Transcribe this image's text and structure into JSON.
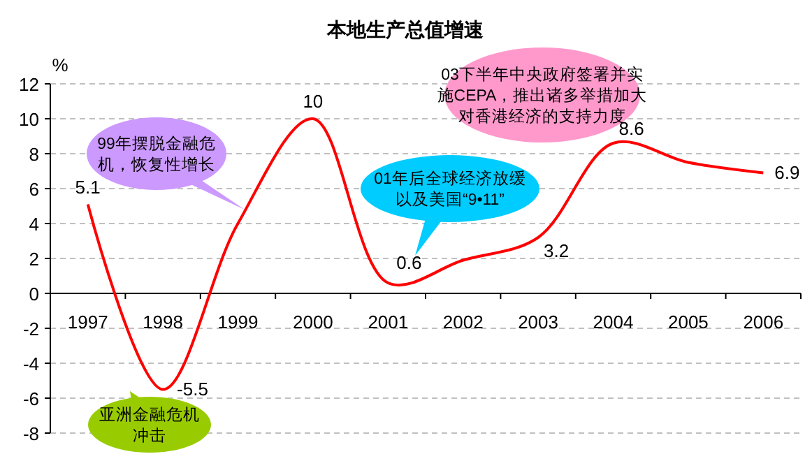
{
  "chart_data": {
    "type": "line",
    "title": "本地生产总值增速",
    "ylabel": "%",
    "categories": [
      "1997",
      "1998",
      "1999",
      "2000",
      "2001",
      "2002",
      "2003",
      "2004",
      "2005",
      "2006"
    ],
    "series": [
      {
        "color": "#ff0000",
        "values": [
          5.1,
          -5.5,
          4.0,
          10,
          0.6,
          1.9,
          3.2,
          8.6,
          7.5,
          6.9
        ],
        "value_labels": [
          "5.1",
          "-5.5",
          null,
          "10",
          "0.6",
          null,
          "3.2",
          "8.6",
          null,
          "6.9"
        ]
      }
    ],
    "ylim": [
      -8,
      12
    ],
    "yticks": [
      -8,
      -6,
      -4,
      -2,
      0,
      2,
      4,
      6,
      8,
      10,
      12
    ],
    "grid": "y",
    "marker": "none",
    "line_style": "solid",
    "annotations": [
      "99年摆脱金融危机，恢复性增长",
      "01年后全球经济放缓以及美国“9•11”",
      "03下半年中央政府签署并实施CEPA，推出诸多举措加大对香港经济的支持力度",
      "亚洲金融危机冲击"
    ]
  }
}
